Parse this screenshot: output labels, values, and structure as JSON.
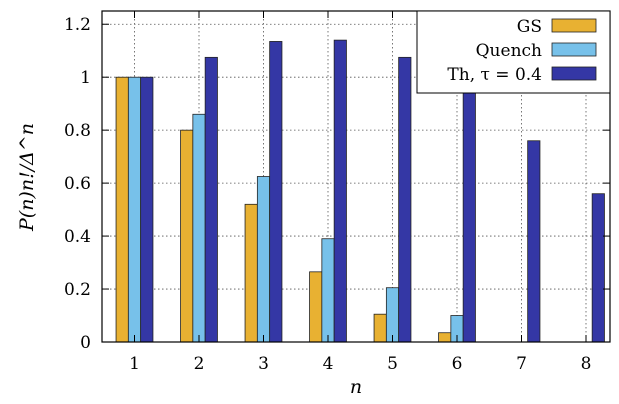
{
  "chart_data": {
    "type": "bar",
    "xlabel": "n",
    "ylabel": "P(n)n!/Δ^n",
    "ylim": [
      0,
      1.25
    ],
    "grid": true,
    "legend_position": "top-right",
    "categories": [
      "1",
      "2",
      "3",
      "4",
      "5",
      "6",
      "7",
      "8"
    ],
    "yticks": [
      "0",
      "0.2",
      "0.4",
      "0.6",
      "0.8",
      "1",
      "1.2"
    ],
    "series": [
      {
        "name": "GS",
        "color": "#E8B132",
        "values": [
          1.0,
          0.8,
          0.52,
          0.265,
          0.105,
          0.035,
          0,
          0
        ]
      },
      {
        "name": "Quench",
        "color": "#77C1EA",
        "values": [
          1.0,
          0.86,
          0.625,
          0.39,
          0.205,
          0.1,
          0,
          0
        ]
      },
      {
        "name": "Th, τ = 0.4",
        "color": "#3437A5",
        "values": [
          1.0,
          1.075,
          1.135,
          1.14,
          1.075,
          0.94,
          0.76,
          0.56
        ]
      }
    ]
  }
}
